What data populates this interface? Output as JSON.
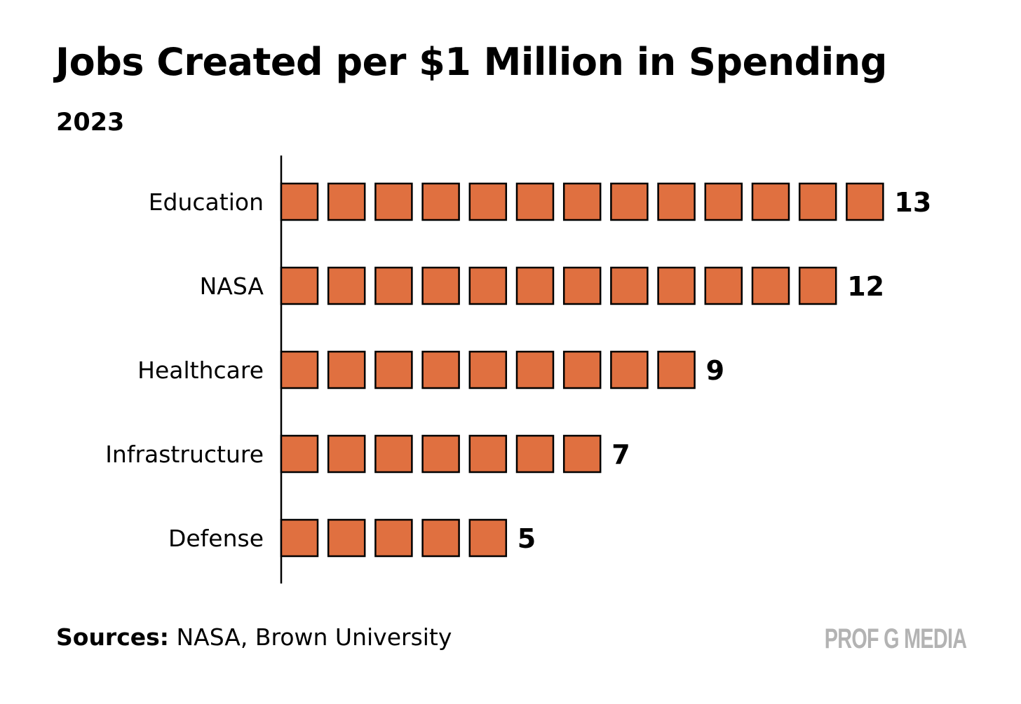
{
  "header": {
    "title": "Jobs Created per $1 Million in Spending",
    "subtitle": "2023"
  },
  "footer": {
    "sources_label": "Sources:",
    "sources_text": " NASA, Brown University",
    "brand": "PROF G MEDIA"
  },
  "colors": {
    "square_fill": "#E07040",
    "square_stroke": "#000000",
    "axis": "#000000"
  },
  "chart_data": {
    "type": "bar",
    "orientation": "horizontal",
    "title": "Jobs Created per $1 Million in Spending",
    "subtitle": "2023",
    "xlabel": "",
    "ylabel": "",
    "categories": [
      "Education",
      "NASA",
      "Healthcare",
      "Infrastructure",
      "Defense"
    ],
    "values": [
      13,
      12,
      9,
      7,
      5
    ],
    "value_labels": [
      "13",
      "12",
      "9",
      "7",
      "5"
    ],
    "grid": false,
    "legend": "none"
  }
}
